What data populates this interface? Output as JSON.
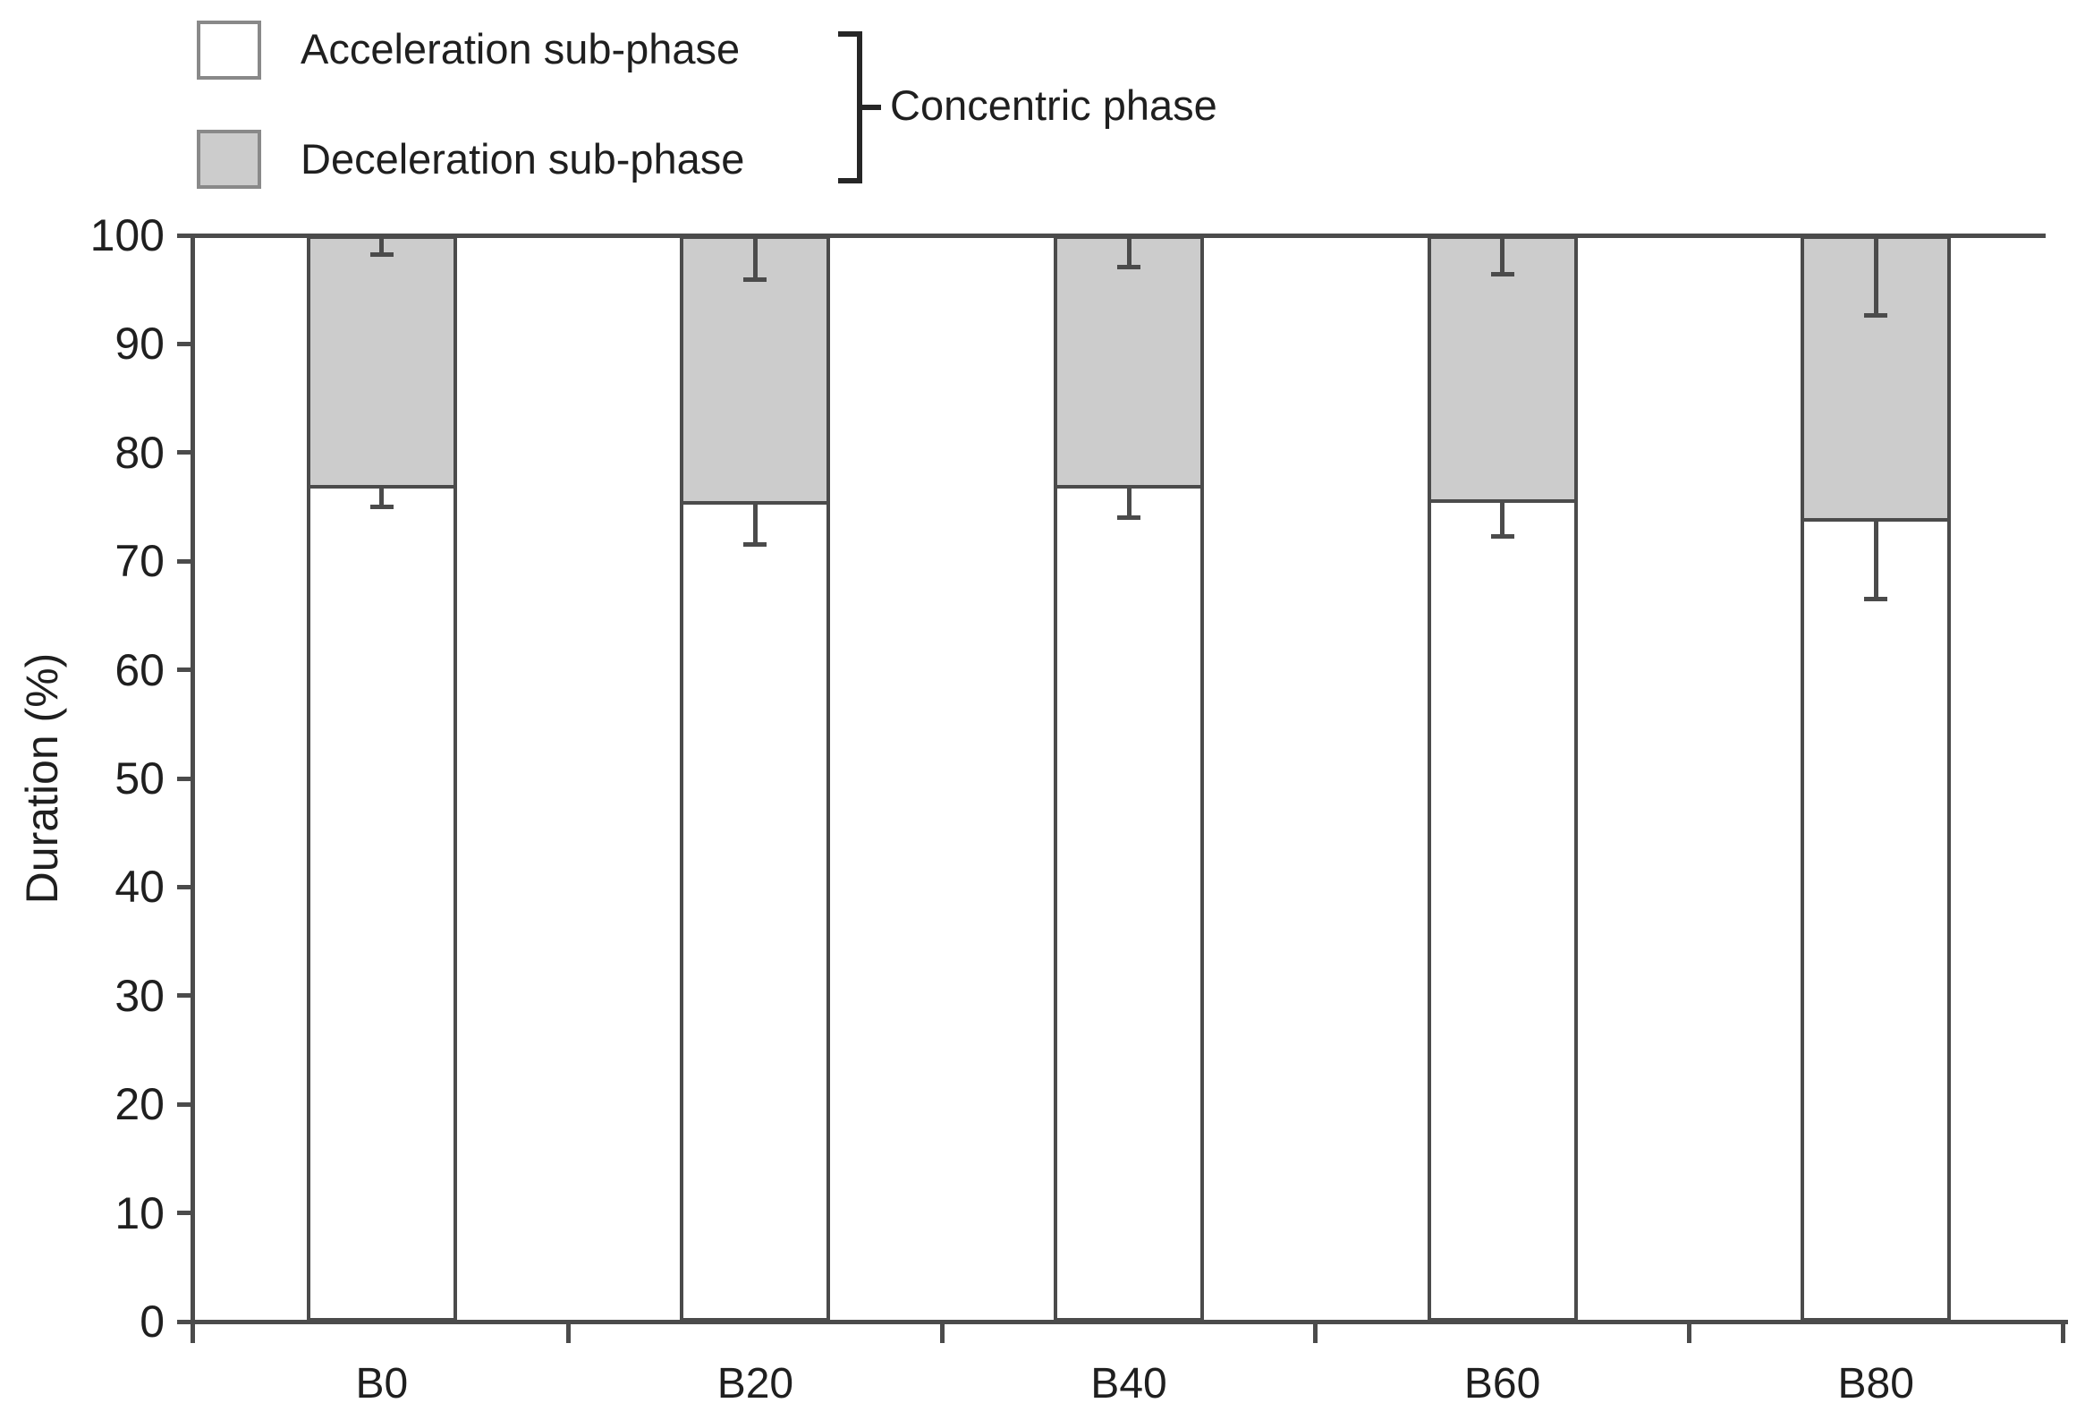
{
  "figure": {
    "ylabel": "Duration (%)",
    "legend": {
      "items": [
        {
          "label": "Acceleration sub-phase",
          "swatch": "white"
        },
        {
          "label": "Deceleration sub-phase",
          "swatch": "gray"
        }
      ],
      "group_label": "Concentric phase"
    }
  },
  "chart_data": {
    "type": "bar",
    "stacked": true,
    "title": "",
    "xlabel": "",
    "ylabel": "Duration (%)",
    "categories": [
      "B0",
      "B20",
      "B40",
      "B60",
      "B80"
    ],
    "series": [
      {
        "name": "Acceleration sub-phase",
        "values": [
          77,
          75.5,
          77,
          75.7,
          74
        ],
        "sd": [
          2,
          4,
          3,
          3.4,
          7.5
        ],
        "fill": "#ffffff"
      },
      {
        "name": "Deceleration sub-phase",
        "values": [
          23,
          24.5,
          23,
          24.3,
          26
        ],
        "sd": [
          1.8,
          4.1,
          2.9,
          3.6,
          7.4
        ],
        "fill": "#cccccc"
      }
    ],
    "ylim": [
      0,
      100
    ],
    "yticks": [
      0,
      10,
      20,
      30,
      40,
      50,
      60,
      70,
      80,
      90,
      100
    ],
    "grid": false,
    "legend_position": "top-left",
    "error_bars": "one-sided downward whiskers with end caps, drawn at segment boundary and at 100% line",
    "annotations": [
      "Bracket groups both legend entries as Concentric phase"
    ],
    "colors": {
      "axis_and_outline": "#4b4b4b",
      "text": "#1f1f1f",
      "acceleration_fill": "#ffffff",
      "deceleration_fill": "#cccccc",
      "legend_swatch_border": "#898989"
    }
  }
}
